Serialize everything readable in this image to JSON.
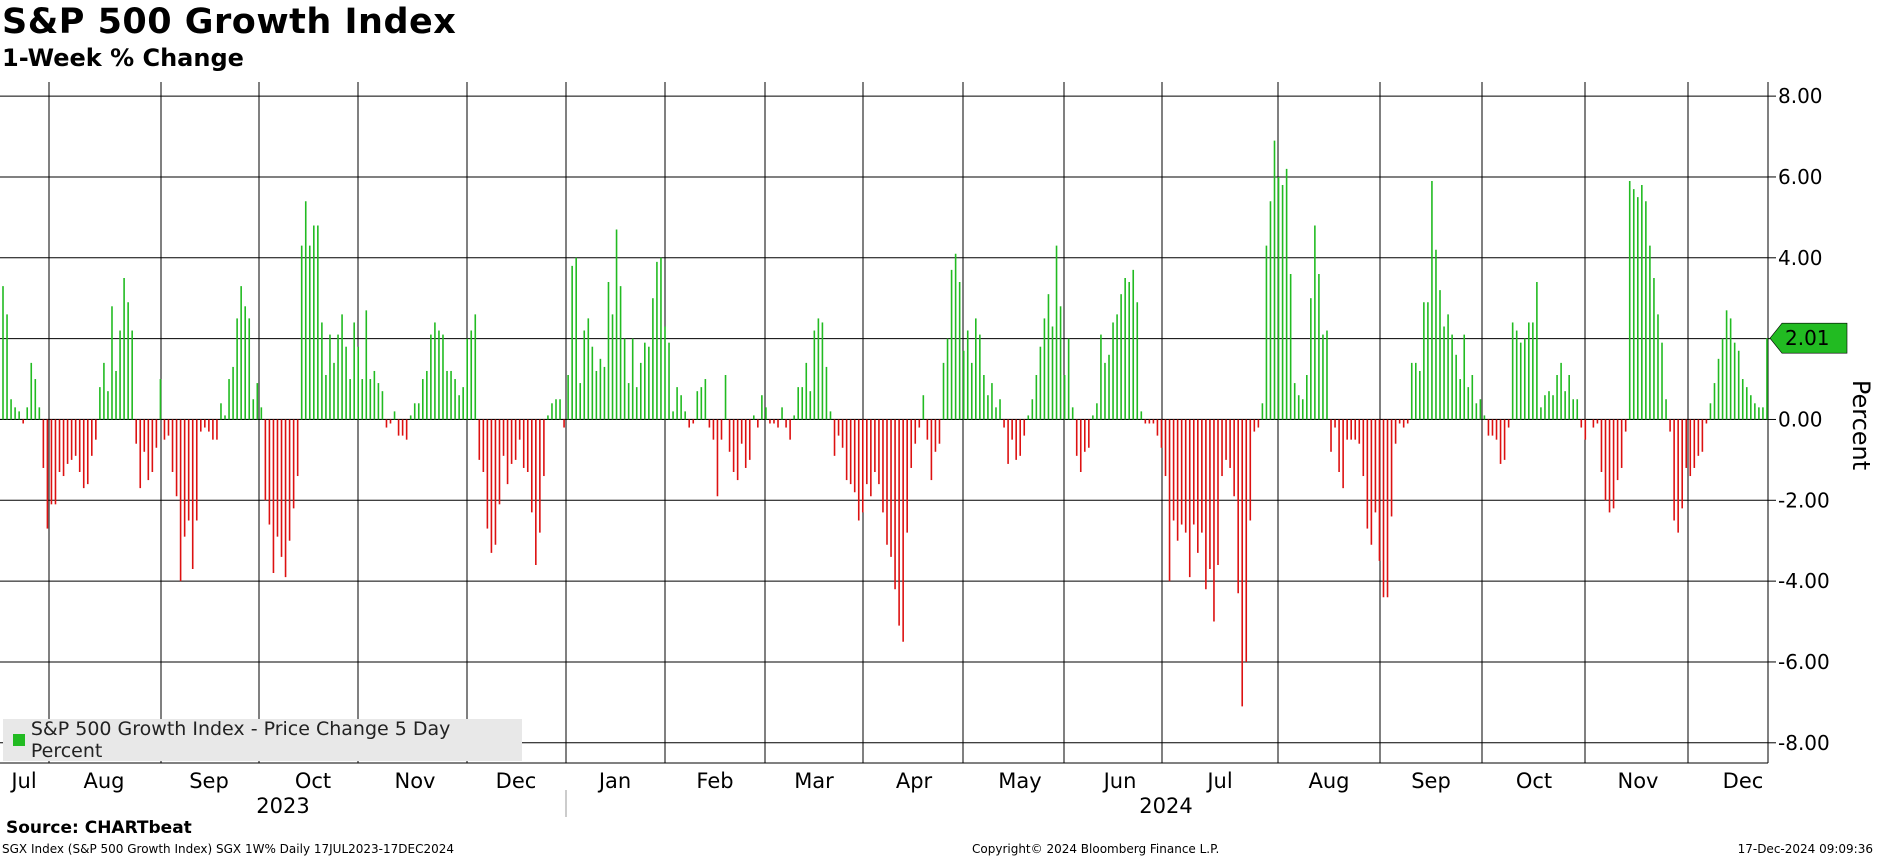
{
  "title": "S&P 500 Growth Index",
  "subtitle": "1-Week % Change",
  "source": "Source: CHARTbeat",
  "footer": {
    "left": "SGX Index (S&P 500 Growth Index) SGX 1W%  Daily 17JUL2023-17DEC2024",
    "middle": "Copyright© 2024 Bloomberg Finance L.P.",
    "right": "17-Dec-2024 09:09:36"
  },
  "colors": {
    "positive": "#22bb22",
    "negative": "#dd1111",
    "last_value_box": "#22bb22"
  },
  "chart_data": {
    "type": "bar",
    "ylabel": "Percent",
    "ylim": [
      -8.5,
      8.3
    ],
    "yticks": [
      8,
      6,
      4,
      2,
      0,
      -2,
      -4,
      -6,
      -8
    ],
    "ytick_labels": [
      "8.00",
      "6.00",
      "4.00",
      "2.00",
      "0.00",
      "-2.00",
      "-4.00",
      "-6.00",
      "-8.00"
    ],
    "grid": true,
    "legend_position": "bottom-left",
    "last_value": 2.01,
    "last_value_label": "2.01",
    "months": [
      "Jul",
      "Aug",
      "Sep",
      "Oct",
      "Nov",
      "Dec",
      "Jan",
      "Feb",
      "Mar",
      "Apr",
      "May",
      "Jun",
      "Jul",
      "Aug",
      "Sep",
      "Oct",
      "Nov",
      "Dec"
    ],
    "years": [
      "2023",
      "2024"
    ],
    "series": [
      {
        "name": "S&P 500 Growth Index - Price Change 5 Day Percent",
        "values": [
          3.3,
          2.6,
          0.5,
          0.3,
          0.2,
          -0.1,
          0.3,
          1.4,
          1.0,
          0.3,
          -1.2,
          -2.7,
          -2.1,
          -2.1,
          -1.3,
          -1.4,
          -1.1,
          -1.0,
          -0.9,
          -1.3,
          -1.7,
          -1.6,
          -0.9,
          -0.5,
          0.8,
          1.4,
          0.7,
          2.8,
          1.2,
          2.2,
          3.5,
          2.9,
          2.2,
          -0.6,
          -1.7,
          -0.8,
          -1.5,
          -1.3,
          -0.7,
          1.0,
          -0.5,
          -0.4,
          -1.3,
          -1.9,
          -4.0,
          -2.9,
          -2.5,
          -3.7,
          -2.5,
          -0.3,
          -0.2,
          -0.3,
          -0.5,
          -0.5,
          0.4,
          0.1,
          1.0,
          1.3,
          2.5,
          3.3,
          2.8,
          2.5,
          0.5,
          0.9,
          0.3,
          -2.0,
          -2.6,
          -3.8,
          -2.9,
          -3.4,
          -3.9,
          -3.0,
          -2.2,
          -1.4,
          4.3,
          5.4,
          4.3,
          4.8,
          4.8,
          2.4,
          1.1,
          2.1,
          1.4,
          2.1,
          2.6,
          1.8,
          1.0,
          2.4,
          1.8,
          1.0,
          2.7,
          1.0,
          1.2,
          0.9,
          0.7,
          -0.2,
          -0.1,
          0.2,
          -0.4,
          -0.4,
          -0.5,
          0.1,
          0.4,
          0.4,
          1.0,
          1.2,
          2.1,
          2.4,
          2.2,
          2.1,
          1.2,
          1.2,
          1.0,
          0.6,
          0.8,
          2.0,
          2.2,
          2.6,
          -1.0,
          -1.3,
          -2.7,
          -3.3,
          -3.1,
          -2.1,
          -0.9,
          -1.6,
          -1.1,
          -1.0,
          -0.5,
          -1.2,
          -1.3,
          -2.3,
          -3.6,
          -2.8,
          -1.4,
          0.1,
          0.4,
          0.5,
          0.5,
          -0.2,
          1.1,
          3.8,
          4.0,
          0.9,
          2.2,
          2.5,
          1.8,
          1.2,
          1.5,
          1.3,
          3.4,
          2.6,
          4.7,
          3.3,
          2.0,
          0.9,
          2.0,
          0.8,
          1.4,
          1.9,
          1.8,
          3.0,
          3.9,
          4.0,
          2.3,
          1.9,
          0.2,
          0.8,
          0.6,
          0.2,
          -0.2,
          -0.1,
          0.7,
          0.8,
          1.0,
          -0.2,
          -0.5,
          -1.9,
          -0.5,
          1.1,
          -0.8,
          -1.3,
          -1.5,
          -0.6,
          -1.2,
          -1.0,
          0.1,
          -0.2,
          0.6,
          0.3,
          -0.1,
          -0.1,
          -0.2,
          0.3,
          -0.2,
          -0.5,
          0.1,
          0.8,
          0.8,
          1.4,
          0.7,
          2.2,
          2.5,
          2.4,
          1.3,
          0.2,
          -0.9,
          -0.4,
          -0.7,
          -1.5,
          -1.6,
          -1.8,
          -2.5,
          -2.3,
          -1.6,
          -1.9,
          -1.3,
          -1.6,
          -2.3,
          -3.1,
          -3.4,
          -4.2,
          -5.1,
          -5.5,
          -2.8,
          -1.2,
          -0.6,
          -0.2,
          0.6,
          -0.5,
          -1.5,
          -0.8,
          -0.6,
          1.4,
          2.0,
          3.7,
          4.1,
          3.4,
          1.7,
          2.2,
          1.4,
          2.5,
          2.1,
          1.1,
          0.6,
          0.9,
          0.3,
          0.5,
          -0.2,
          -1.1,
          -0.5,
          -1.0,
          -0.9,
          -0.4,
          0.1,
          0.5,
          1.1,
          1.8,
          2.5,
          3.1,
          2.3,
          4.3,
          2.8,
          1.1,
          2.0,
          0.3,
          -0.9,
          -1.3,
          -0.8,
          -0.7,
          0.1,
          0.4,
          2.1,
          1.4,
          1.6,
          2.4,
          2.6,
          3.1,
          3.5,
          3.4,
          3.7,
          2.9,
          0.2,
          -0.1,
          -0.1,
          -0.1,
          -0.4,
          -0.7,
          -1.4,
          -4.0,
          -2.5,
          -3.0,
          -2.6,
          -2.8,
          -3.9,
          -2.6,
          -3.3,
          -2.8,
          -4.2,
          -3.7,
          -5.0,
          -3.6,
          -1.4,
          -1.0,
          -1.2,
          -1.9,
          -4.3,
          -7.1,
          -6.0,
          -2.5,
          -0.3,
          -0.2,
          0.4,
          4.3,
          5.4,
          6.9,
          6.0,
          5.8,
          6.2,
          3.6,
          0.9,
          0.6,
          0.5,
          1.1,
          3.0,
          4.8,
          3.6,
          2.1,
          2.2,
          -0.8,
          -0.2,
          -1.3,
          -1.7,
          -0.5,
          -0.5,
          -0.5,
          -0.6,
          -1.4,
          -2.7,
          -3.1,
          -2.3,
          -3.5,
          -4.4,
          -4.4,
          -2.4,
          -0.6,
          -0.1,
          -0.2,
          -0.1,
          1.4,
          1.4,
          1.2,
          2.9,
          2.9,
          5.9,
          4.2,
          3.2,
          2.3,
          2.6,
          2.1,
          1.6,
          1.0,
          2.1,
          0.8,
          1.1,
          0.4,
          0.5,
          0.1,
          -0.4,
          -0.4,
          -0.5,
          -1.1,
          -1.0,
          -0.2,
          2.4,
          2.2,
          1.9,
          2.0,
          2.4,
          2.4,
          3.4,
          0.3,
          0.6,
          0.7,
          0.6,
          1.1,
          1.4,
          0.7,
          1.1,
          0.5,
          0.5,
          -0.2,
          -0.5,
          0.0,
          -0.2,
          -0.1,
          -1.3,
          -2.0,
          -2.3,
          -2.2,
          -1.5,
          -1.2,
          -0.3,
          5.9,
          5.7,
          5.5,
          5.8,
          5.4,
          4.3,
          3.5,
          2.6,
          1.9,
          0.5,
          -0.3,
          -2.5,
          -2.8,
          -2.2,
          -1.2,
          -1.4,
          -1.2,
          -0.9,
          -0.8,
          -0.1,
          0.4,
          0.9,
          1.5,
          2.0,
          2.7,
          2.5,
          1.9,
          1.7,
          1.0,
          0.8,
          0.6,
          0.4,
          0.3,
          0.3,
          2.01
        ]
      }
    ]
  }
}
